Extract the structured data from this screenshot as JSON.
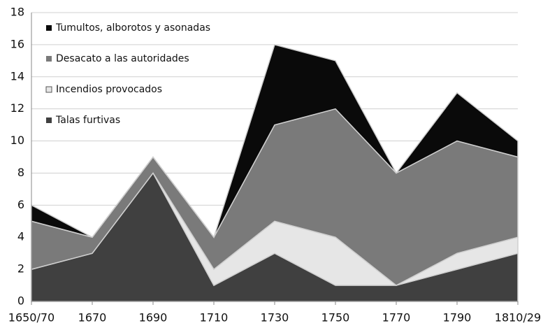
{
  "chart_data": {
    "type": "stacked-area",
    "categories": [
      "1650/70",
      "1670",
      "1690",
      "1710",
      "1730",
      "1750",
      "1770",
      "1790",
      "1810/29"
    ],
    "series": [
      {
        "name": "Talas furtivas",
        "color": "#404040",
        "values": [
          2,
          3,
          8,
          1,
          3,
          1,
          1,
          2,
          3
        ]
      },
      {
        "name": "Incendios provocados",
        "color": "#e6e6e6",
        "values": [
          0,
          0,
          0,
          1,
          2,
          3,
          0,
          1,
          1
        ]
      },
      {
        "name": "Desacato a las autoridades",
        "color": "#7a7a7a",
        "values": [
          3,
          1,
          1,
          2,
          6,
          8,
          7,
          7,
          5
        ]
      },
      {
        "name": "Tumultos, alborotos y asonadas",
        "color": "#0a0a0a",
        "values": [
          1,
          0,
          0,
          0,
          5,
          3,
          0,
          3,
          1
        ]
      }
    ],
    "ylim": [
      0,
      18
    ],
    "yticks": [
      0,
      2,
      4,
      6,
      8,
      10,
      12,
      14,
      16,
      18
    ],
    "grid": true
  }
}
